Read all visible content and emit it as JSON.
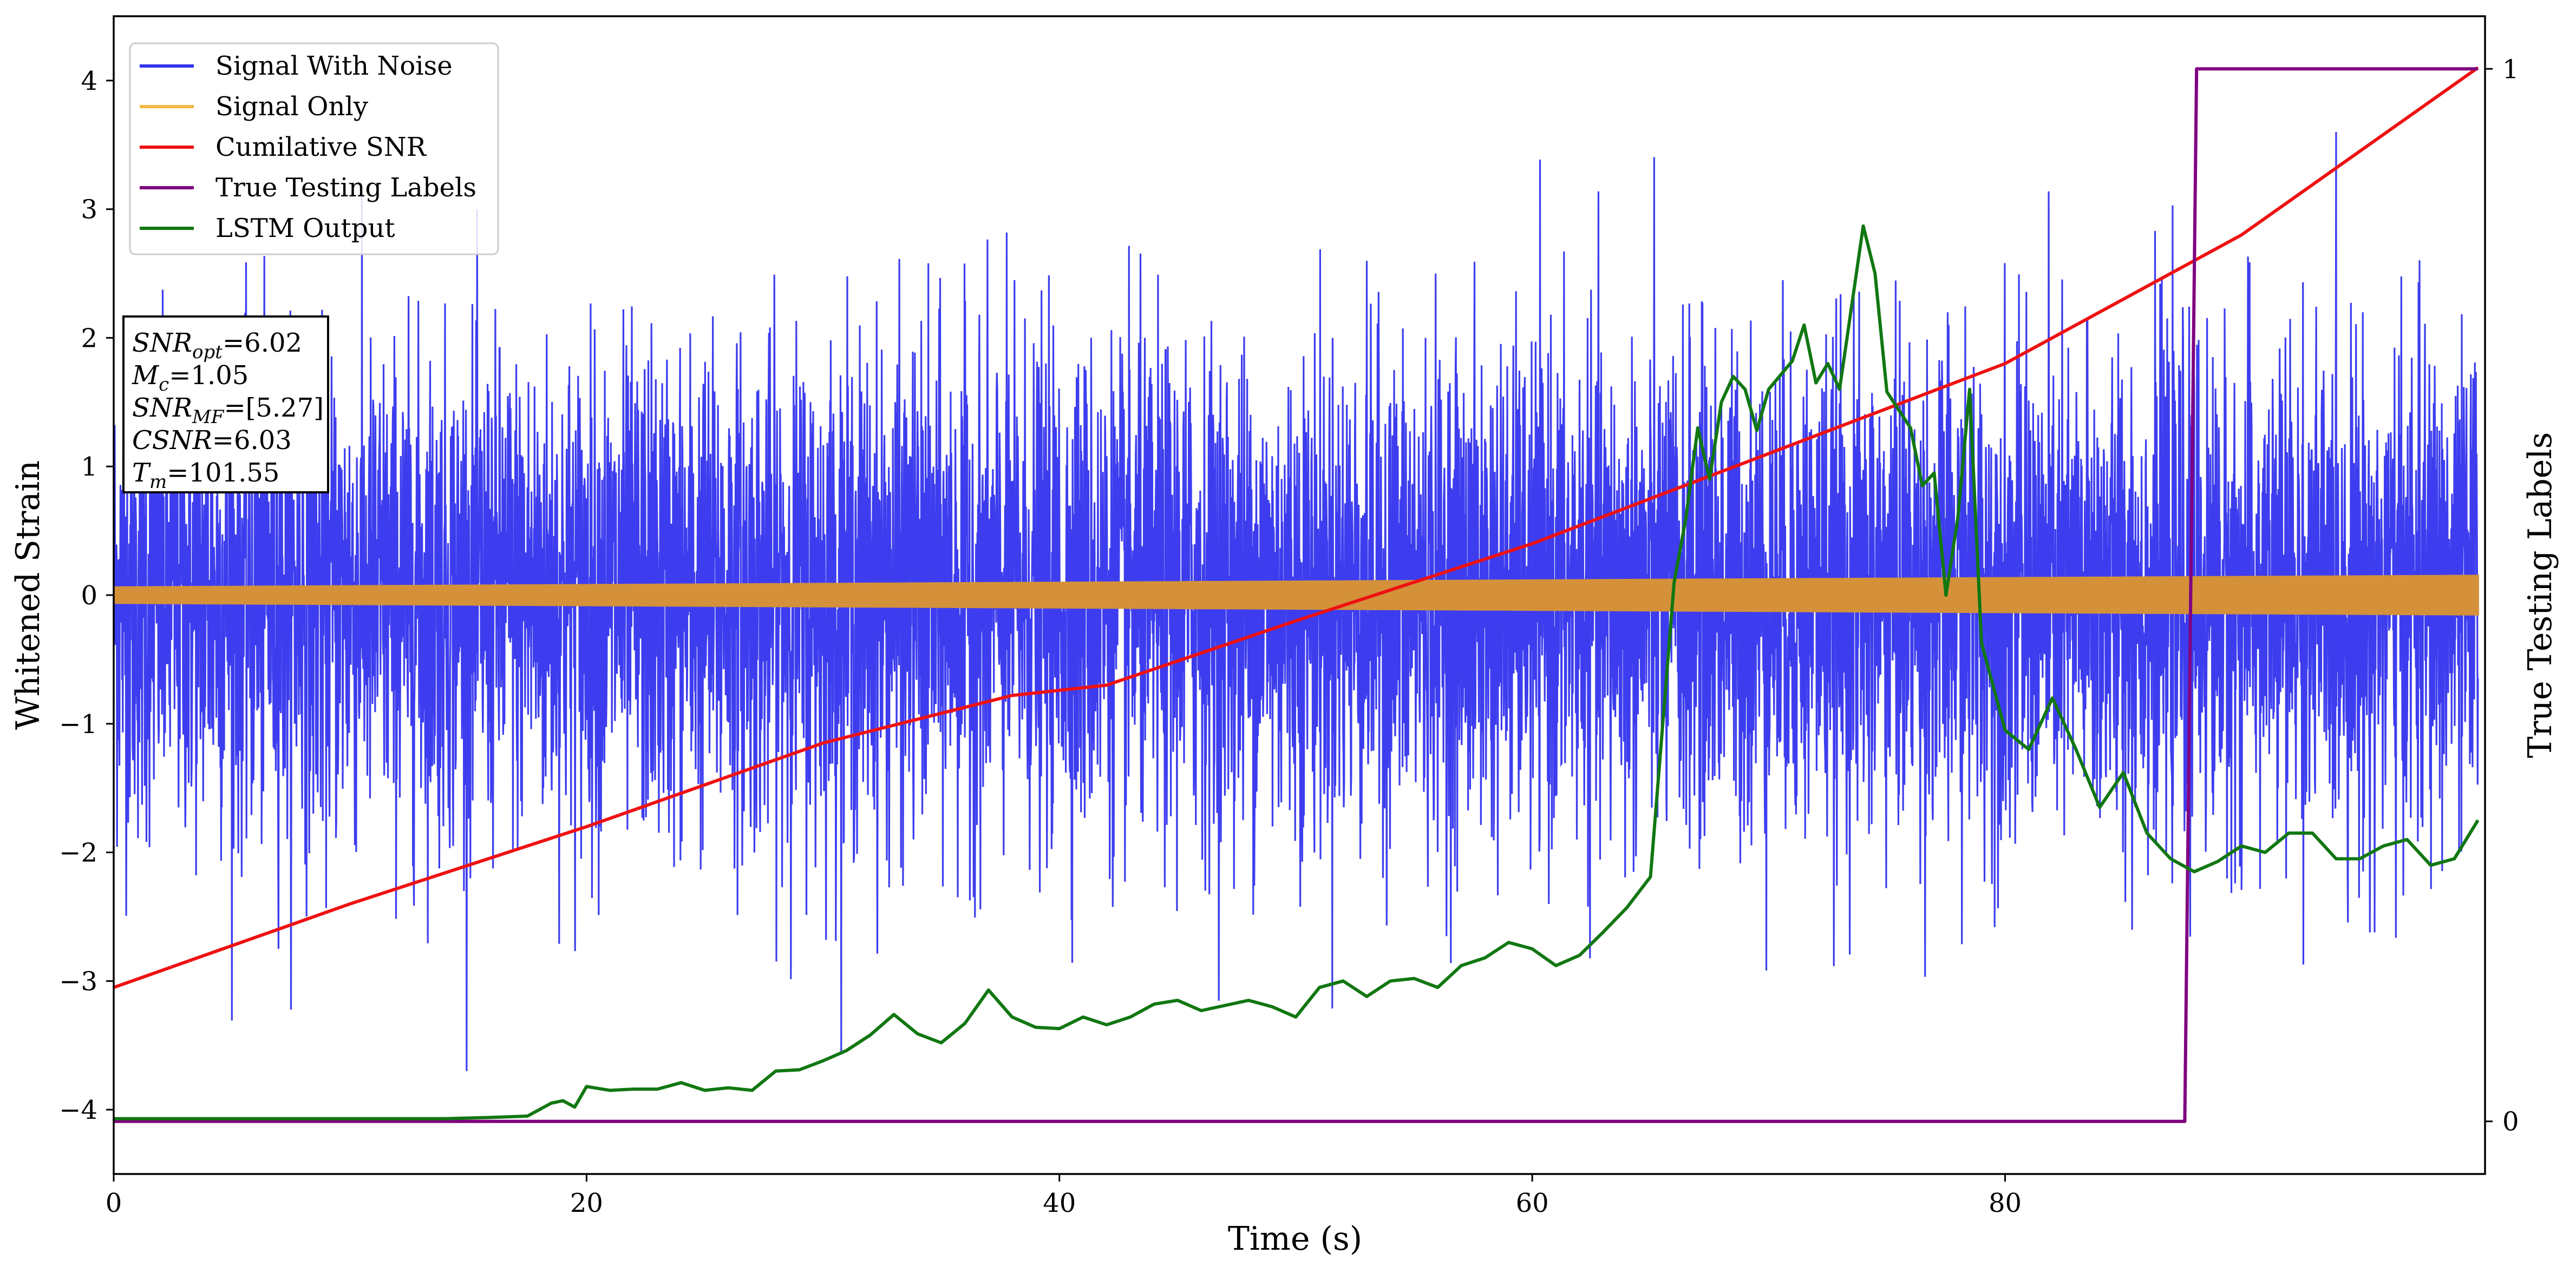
{
  "chart_data": {
    "type": "line",
    "xlabel": "Time (s)",
    "ylabel_left": "Whitened Strain",
    "ylabel_right": "True Testing Labels",
    "xlim": [
      0,
      100.3
    ],
    "ylim_left": [
      -4.5,
      4.5
    ],
    "ylim_right": [
      -0.05,
      1.05
    ],
    "x_ticks": [
      0,
      20,
      40,
      60,
      80
    ],
    "y_ticks_left": [
      -4,
      -3,
      -2,
      -1,
      0,
      1,
      2,
      3,
      4
    ],
    "y_ticks_right": [
      0,
      1
    ],
    "legend": {
      "position": "upper left",
      "entries": [
        {
          "label": "Signal With Noise",
          "color": "#3333ee"
        },
        {
          "label": "Signal Only",
          "color": "#f5b942"
        },
        {
          "label": "Cumilative SNR",
          "color": "#ee1111"
        },
        {
          "label": "True Testing Labels",
          "color": "#800080"
        },
        {
          "label": "LSTM Output",
          "color": "#117711"
        }
      ]
    },
    "info_box": {
      "lines": [
        {
          "name": "SNR",
          "sub": "opt",
          "value": "=6.02"
        },
        {
          "name": "M",
          "sub": "c",
          "value": "=1.05"
        },
        {
          "name": "SNR",
          "sub": "MF",
          "value": "=[5.27]"
        },
        {
          "name": "CSNR",
          "sub": "",
          "value": "=6.03"
        },
        {
          "name": "T",
          "sub": "m",
          "value": "=101.55"
        }
      ]
    },
    "series": [
      {
        "name": "Signal With Noise",
        "axis": "left",
        "color": "#3333ee",
        "x_range": [
          0,
          100
        ],
        "style": "noise",
        "std": 0.95,
        "envelope_max": 3.6,
        "envelope_min": -3.7
      },
      {
        "name": "Signal Only",
        "axis": "left",
        "color": "#d4913a",
        "x_range": [
          0,
          100
        ],
        "style": "band",
        "amplitude_start": 0.06,
        "amplitude_end": 0.15
      },
      {
        "name": "Cumilative SNR",
        "axis": "left",
        "color": "#ee1111",
        "x": [
          0,
          10,
          20,
          30,
          38,
          42,
          50,
          55,
          60,
          70,
          80,
          90,
          100
        ],
        "y": [
          -3.05,
          -2.4,
          -1.8,
          -1.15,
          -0.78,
          -0.7,
          -0.2,
          0.1,
          0.4,
          1.1,
          1.8,
          2.8,
          4.1
        ]
      },
      {
        "name": "True Testing Labels",
        "axis": "right",
        "color": "#800080",
        "x": [
          0,
          87.6,
          88.1,
          100
        ],
        "y": [
          0,
          0,
          1,
          1
        ]
      },
      {
        "name": "LSTM Output",
        "axis": "left",
        "color": "#117711",
        "x": [
          0,
          14,
          16,
          17.5,
          18.5,
          19,
          19.5,
          20,
          21,
          22,
          23,
          24,
          25,
          26,
          27,
          28,
          29,
          30,
          31,
          32,
          33,
          34,
          35,
          36,
          37,
          38,
          39,
          40,
          41,
          42,
          43,
          44,
          45,
          46,
          47,
          48,
          49,
          50,
          51,
          52,
          53,
          54,
          55,
          56,
          57,
          58,
          59,
          60,
          61,
          62,
          63,
          64,
          65,
          66,
          66.5,
          67,
          67.5,
          68,
          68.5,
          69,
          69.5,
          70,
          71,
          71.5,
          72,
          72.5,
          73,
          74,
          74.5,
          75,
          76,
          76.5,
          77,
          77.5,
          78,
          78.5,
          79,
          80,
          81,
          82,
          83,
          84,
          85,
          86,
          87,
          88,
          89,
          90,
          91,
          92,
          93,
          94,
          95,
          96,
          97,
          98,
          99,
          100
        ],
        "y": [
          -4.07,
          -4.07,
          -4.06,
          -4.05,
          -3.95,
          -3.93,
          -3.98,
          -3.82,
          -3.85,
          -3.84,
          -3.84,
          -3.79,
          -3.85,
          -3.83,
          -3.85,
          -3.7,
          -3.69,
          -3.62,
          -3.54,
          -3.42,
          -3.26,
          -3.41,
          -3.48,
          -3.33,
          -3.07,
          -3.28,
          -3.36,
          -3.37,
          -3.28,
          -3.34,
          -3.28,
          -3.18,
          -3.15,
          -3.23,
          -3.19,
          -3.15,
          -3.2,
          -3.28,
          -3.05,
          -3.0,
          -3.12,
          -3.0,
          -2.98,
          -3.05,
          -2.88,
          -2.82,
          -2.7,
          -2.75,
          -2.88,
          -2.8,
          -2.62,
          -2.43,
          -2.19,
          0.1,
          0.6,
          1.3,
          0.9,
          1.5,
          1.7,
          1.6,
          1.28,
          1.6,
          1.82,
          2.1,
          1.65,
          1.8,
          1.6,
          2.87,
          2.5,
          1.58,
          1.3,
          0.85,
          0.95,
          0.0,
          0.6,
          1.6,
          -0.37,
          -1.05,
          -1.2,
          -0.8,
          -1.2,
          -1.65,
          -1.38,
          -1.85,
          -2.05,
          -2.15,
          -2.07,
          -1.95,
          -2.0,
          -1.85,
          -1.85,
          -2.05,
          -2.05,
          -1.95,
          -1.9,
          -2.1,
          -2.05,
          -1.75
        ]
      }
    ]
  }
}
